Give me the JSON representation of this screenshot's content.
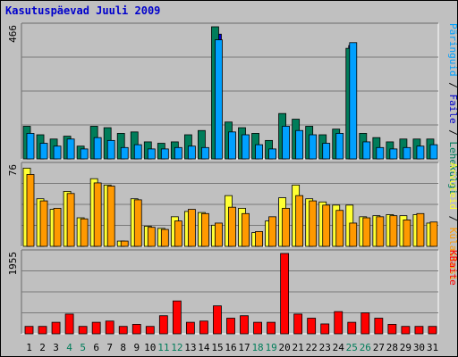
{
  "window": {
    "title": "Kasutuspäevad Juuli 2009"
  },
  "colors": {
    "background": "#c0c0c0",
    "panel": "#c0c0c0",
    "grid": "#7a7a7a",
    "pages": "#007d5a",
    "files": "#00a0ff",
    "hits_edge": "#0000cc",
    "visits": "#ffff33",
    "visitors": "#ff9900",
    "bytes": "#ff0000",
    "weekend_label": "#007d5a",
    "normal_label": "#000000"
  },
  "chart_data": [
    {
      "type": "bar",
      "title": "Kasutuspäevad Juuli 2009",
      "categories": [
        "1",
        "2",
        "3",
        "4",
        "5",
        "6",
        "7",
        "8",
        "9",
        "10",
        "11",
        "12",
        "13",
        "14",
        "15",
        "16",
        "17",
        "18",
        "19",
        "20",
        "21",
        "22",
        "23",
        "24",
        "25",
        "26",
        "27",
        "28",
        "29",
        "30",
        "31"
      ],
      "weekend_days": [
        "4",
        "5",
        "11",
        "12",
        "18",
        "19",
        "25",
        "26"
      ],
      "ymax_label": "466",
      "ylim": [
        0,
        466
      ],
      "legend_right": [
        "Lehekülgi",
        "Faile",
        "Päringuid"
      ],
      "series": [
        {
          "name": "Lehekülgi",
          "values": [
            115,
            85,
            70,
            80,
            45,
            115,
            110,
            90,
            95,
            60,
            55,
            60,
            85,
            100,
            466,
            130,
            110,
            90,
            65,
            160,
            140,
            115,
            85,
            105,
            390,
            90,
            75,
            60,
            70,
            70,
            70
          ]
        },
        {
          "name": "Faile",
          "values": [
            90,
            55,
            45,
            70,
            35,
            75,
            65,
            40,
            50,
            35,
            35,
            40,
            45,
            40,
            420,
            95,
            85,
            50,
            35,
            115,
            100,
            85,
            55,
            90,
            410,
            60,
            40,
            35,
            40,
            45,
            50
          ]
        },
        {
          "name": "Päringuid",
          "values": [
            0,
            0,
            0,
            0,
            0,
            0,
            0,
            0,
            0,
            0,
            0,
            0,
            0,
            0,
            440,
            0,
            0,
            0,
            0,
            0,
            0,
            0,
            0,
            0,
            400,
            0,
            0,
            0,
            0,
            0,
            0
          ]
        }
      ]
    },
    {
      "type": "bar",
      "categories": [
        "1",
        "2",
        "3",
        "4",
        "5",
        "6",
        "7",
        "8",
        "9",
        "10",
        "11",
        "12",
        "13",
        "14",
        "15",
        "16",
        "17",
        "18",
        "19",
        "20",
        "21",
        "22",
        "23",
        "24",
        "25",
        "26",
        "27",
        "28",
        "29",
        "30",
        "31"
      ],
      "ymax_label": "76",
      "ylim": [
        0,
        76
      ],
      "legend_right": [
        "Külastusi",
        "Arvuteid"
      ],
      "series": [
        {
          "name": "Külastusi",
          "values": [
            74,
            45,
            35,
            52,
            27,
            64,
            58,
            5,
            45,
            19,
            17,
            28,
            33,
            32,
            20,
            48,
            36,
            13,
            24,
            46,
            58,
            45,
            42,
            39,
            39,
            28,
            29,
            30,
            29,
            30,
            22
          ]
        },
        {
          "name": "Arvuteid",
          "values": [
            68,
            43,
            36,
            50,
            26,
            60,
            57,
            5,
            44,
            18,
            16,
            24,
            35,
            31,
            22,
            37,
            31,
            14,
            28,
            36,
            48,
            43,
            39,
            34,
            22,
            27,
            28,
            29,
            25,
            31,
            23
          ]
        }
      ]
    },
    {
      "type": "bar",
      "categories": [
        "1",
        "2",
        "3",
        "4",
        "5",
        "6",
        "7",
        "8",
        "9",
        "10",
        "11",
        "12",
        "13",
        "14",
        "15",
        "16",
        "17",
        "18",
        "19",
        "20",
        "21",
        "22",
        "23",
        "24",
        "25",
        "26",
        "27",
        "28",
        "29",
        "30",
        "31"
      ],
      "ymax_label": "1955",
      "ylim": [
        0,
        1955
      ],
      "legend_right": [
        "KBaite"
      ],
      "series": [
        {
          "name": "KBaite",
          "values": [
            180,
            180,
            280,
            480,
            180,
            280,
            310,
            180,
            230,
            180,
            440,
            800,
            280,
            310,
            680,
            380,
            440,
            280,
            280,
            1955,
            480,
            380,
            240,
            540,
            280,
            510,
            380,
            230,
            180,
            180,
            180
          ]
        }
      ]
    }
  ]
}
